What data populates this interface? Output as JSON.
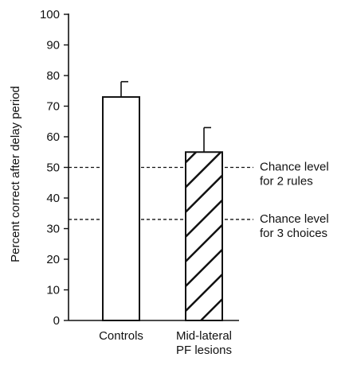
{
  "chart_data": {
    "type": "bar",
    "ylabel": "Percent correct after delay period",
    "ylim": [
      0,
      100
    ],
    "yticks": [
      0,
      10,
      20,
      30,
      40,
      50,
      60,
      70,
      80,
      90,
      100
    ],
    "grid": false,
    "bars": [
      {
        "label_lines": [
          "Controls"
        ],
        "value": 73,
        "error": 5,
        "pattern": "none"
      },
      {
        "label_lines": [
          "Mid-lateral",
          "PF lesions"
        ],
        "value": 55,
        "error": 8,
        "pattern": "diagonal-hatch"
      }
    ],
    "reference_lines": [
      {
        "value": 50,
        "label_lines": [
          "Chance level",
          "for 2 rules"
        ],
        "style": "dashed"
      },
      {
        "value": 33,
        "label_lines": [
          "Chance level",
          "for 3 choices"
        ],
        "style": "dashed"
      }
    ],
    "colors": {
      "ink": "#111111",
      "bar_fill": "#ffffff",
      "background": "#ffffff"
    }
  }
}
